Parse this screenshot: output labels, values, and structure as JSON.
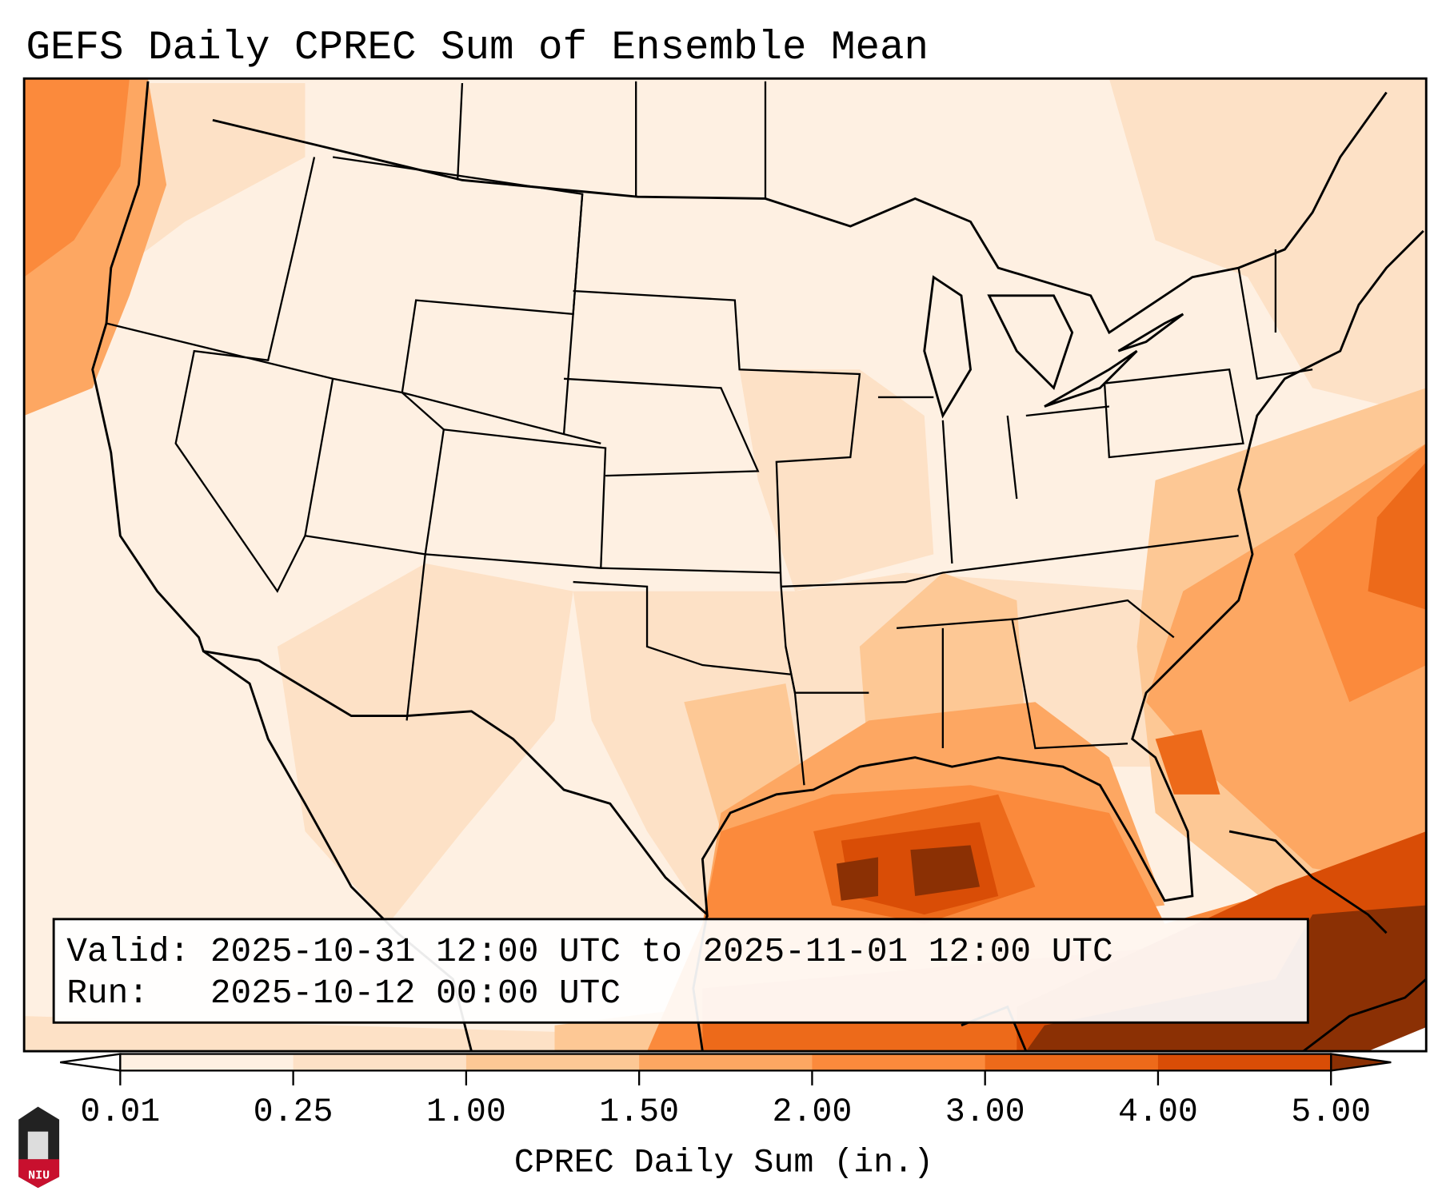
{
  "title": "GEFS Daily CPREC Sum of Ensemble Mean",
  "info_box": {
    "valid_line": "Valid: 2025-10-31 12:00 UTC to 2025-11-01 12:00 UTC",
    "run_line": "Run:   2025-10-12 00:00 UTC"
  },
  "colorbar": {
    "label": "CPREC Daily Sum (in.)",
    "ticks": [
      "0.01",
      "0.25",
      "1.00",
      "1.50",
      "2.00",
      "3.00",
      "4.00",
      "5.00"
    ],
    "under_color": "#ffffff",
    "over_color": "#8b3004",
    "colors": [
      "#fef0e2",
      "#fde1c6",
      "#fdc895",
      "#fda762",
      "#fb8a3c",
      "#ed6a1a",
      "#d94d06"
    ]
  },
  "logo": {
    "text": "NIU"
  },
  "map_colors": {
    "light": "#fef0e2",
    "pale": "#fde1c6",
    "tan": "#fdc895",
    "orange_light": "#fda762",
    "orange": "#fb8a3c",
    "orange_dark": "#ed6a1a",
    "rust": "#d94d06",
    "brown": "#8b3004"
  }
}
